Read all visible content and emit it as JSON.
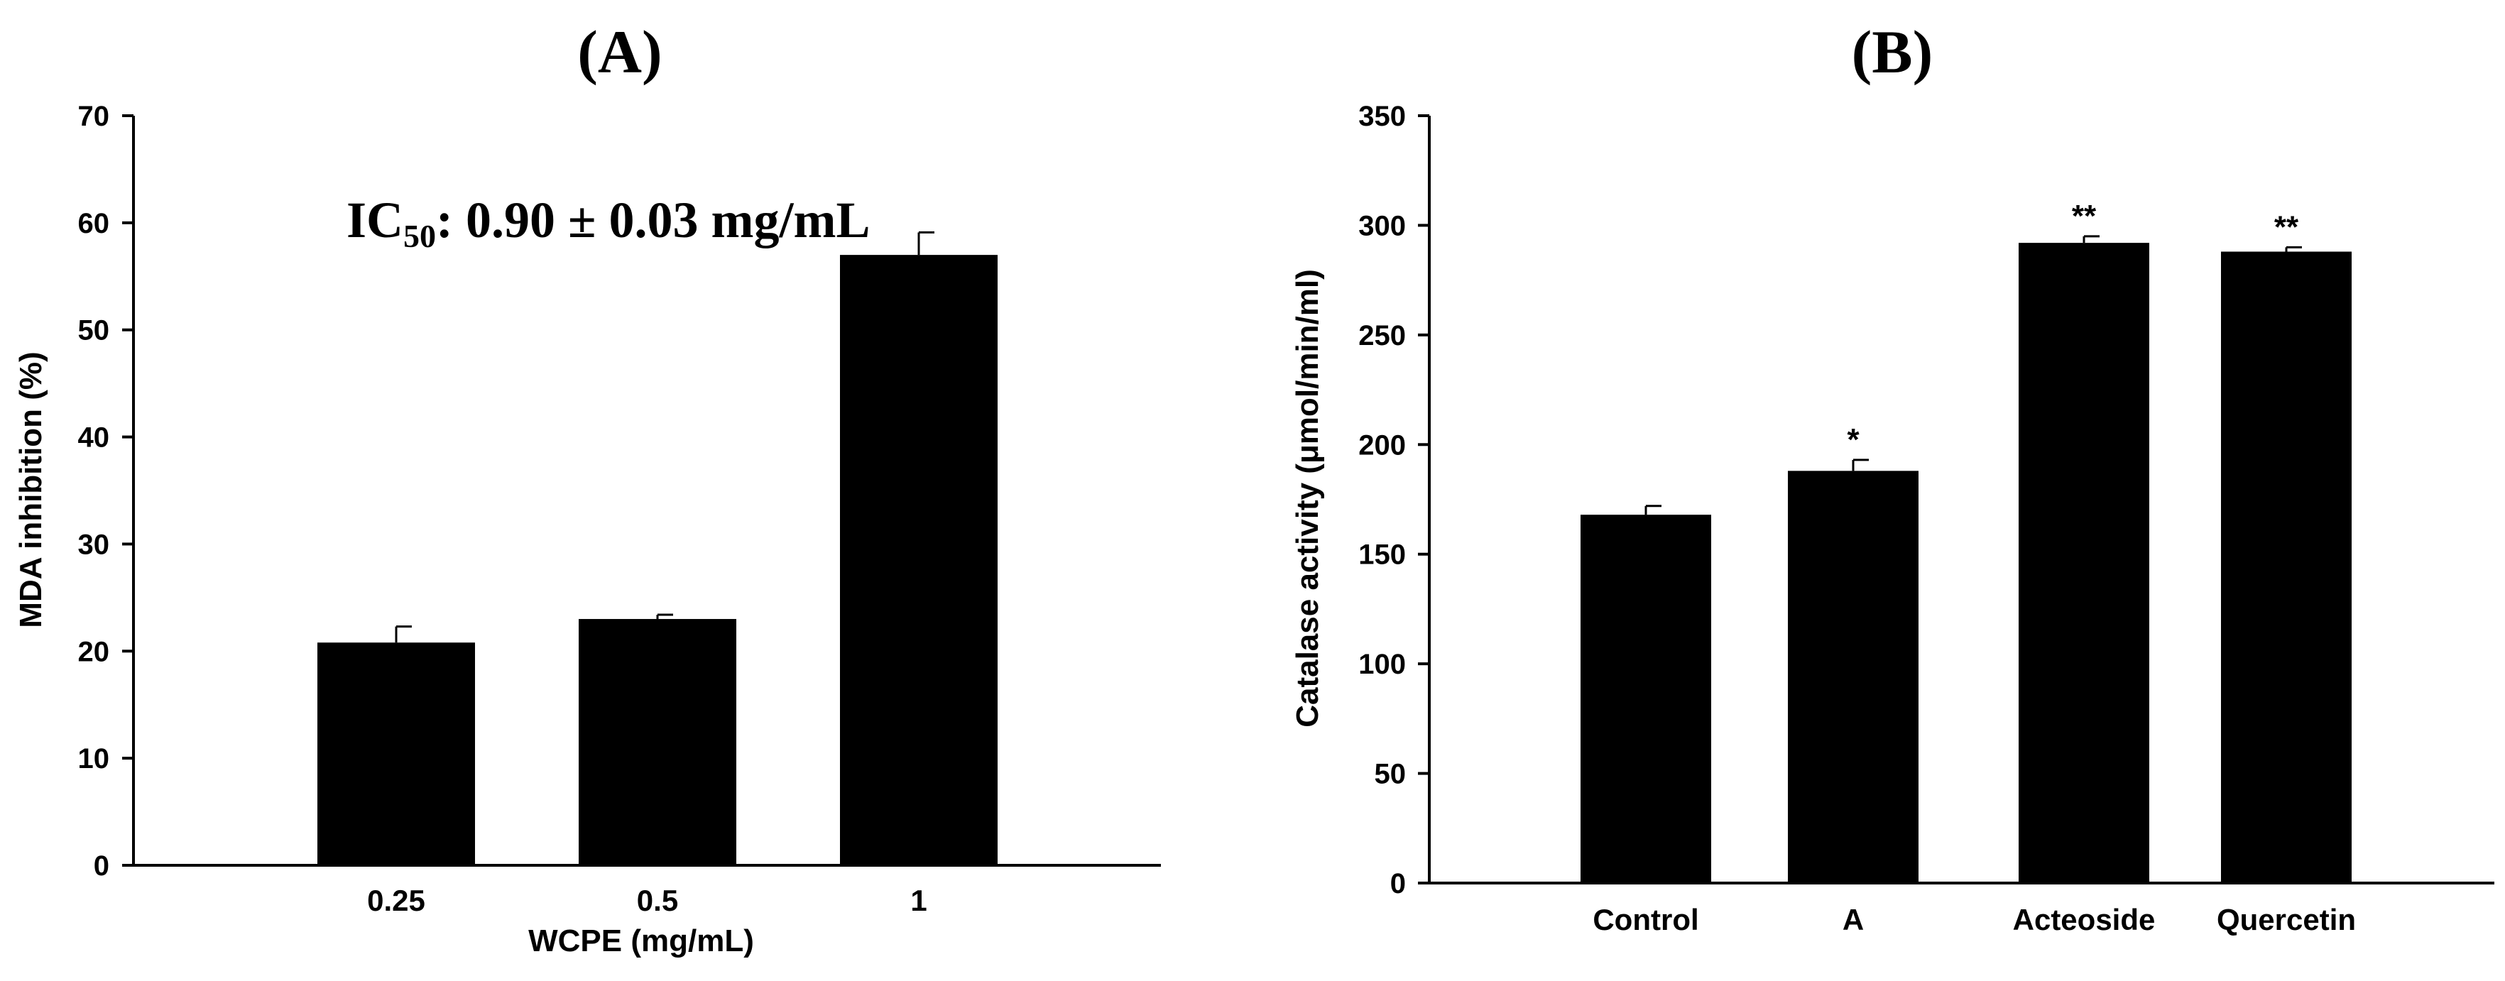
{
  "chart_data": [
    {
      "type": "bar",
      "panel_label": "(A)",
      "categories": [
        "0.25",
        "0.5",
        "1"
      ],
      "series": [
        {
          "values": [
            20.8,
            23.0,
            57.0
          ],
          "errors": [
            1.5,
            0.4,
            2.1
          ]
        }
      ],
      "xlabel": "WCPE (mg/mL)",
      "ylabel": "MDA inhibition (%)",
      "ylim": [
        0,
        70
      ],
      "yticks": [
        0,
        10,
        20,
        30,
        40,
        50,
        60,
        70
      ],
      "annotation": {
        "prefix": "IC",
        "subscript": "50",
        "text": ": 0.90 ± 0.03 mg/mL"
      },
      "grid": false,
      "bar_color": "#000000"
    },
    {
      "type": "bar",
      "panel_label": "(B)",
      "categories": [
        "Control",
        "A",
        "Acteoside",
        "Quercetin"
      ],
      "series": [
        {
          "values": [
            168,
            188,
            292,
            288
          ],
          "errors": [
            4,
            5,
            3,
            2
          ]
        }
      ],
      "significance": [
        "",
        "*",
        "**",
        "**"
      ],
      "xlabel": "",
      "ylabel": "Catalase activity (μmol/min/ml)",
      "ylim": [
        0,
        350
      ],
      "yticks": [
        0,
        50,
        100,
        150,
        200,
        250,
        300,
        350
      ],
      "grid": false,
      "bar_color": "#000000"
    }
  ]
}
